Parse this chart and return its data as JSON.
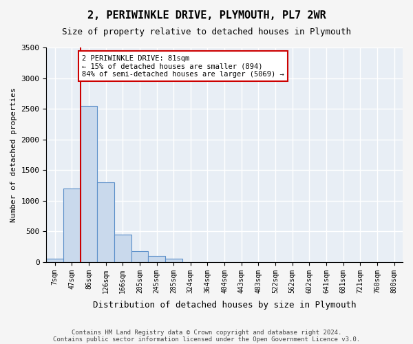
{
  "title": "2, PERIWINKLE DRIVE, PLYMOUTH, PL7 2WR",
  "subtitle": "Size of property relative to detached houses in Plymouth",
  "xlabel": "Distribution of detached houses by size in Plymouth",
  "ylabel": "Number of detached properties",
  "bins": [
    "7sqm",
    "47sqm",
    "86sqm",
    "126sqm",
    "166sqm",
    "205sqm",
    "245sqm",
    "285sqm",
    "324sqm",
    "364sqm",
    "404sqm",
    "443sqm",
    "483sqm",
    "522sqm",
    "562sqm",
    "602sqm",
    "641sqm",
    "681sqm",
    "721sqm",
    "760sqm",
    "800sqm"
  ],
  "values": [
    50,
    1200,
    2550,
    1300,
    450,
    175,
    100,
    50,
    0,
    0,
    0,
    0,
    0,
    0,
    0,
    0,
    0,
    0,
    0,
    0,
    0
  ],
  "bar_color": "#c9d9ec",
  "bar_edge_color": "#5b8fc9",
  "background_color": "#e8eef5",
  "grid_color": "#ffffff",
  "annotation_box_color": "#ffffff",
  "annotation_box_edge": "#cc0000",
  "vline_color": "#cc0000",
  "vline_x_index": 1.5,
  "property_size": "81sqm",
  "pct_smaller": "15%",
  "n_smaller": 894,
  "pct_semi_larger": "84%",
  "n_semi_larger": 5069,
  "ylim": [
    0,
    3500
  ],
  "yticks": [
    0,
    500,
    1000,
    1500,
    2000,
    2500,
    3000,
    3500
  ],
  "footer1": "Contains HM Land Registry data © Crown copyright and database right 2024.",
  "footer2": "Contains public sector information licensed under the Open Government Licence v3.0."
}
